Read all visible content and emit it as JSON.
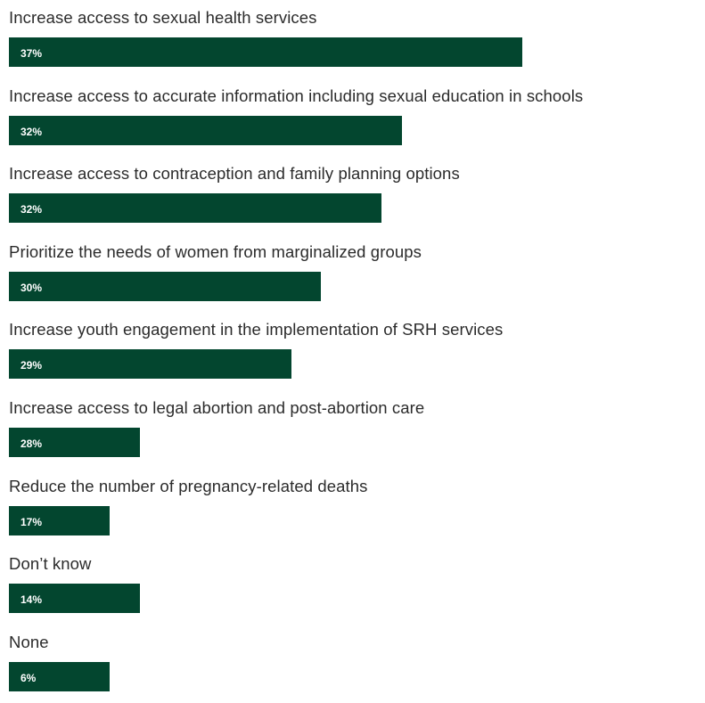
{
  "chart_data": {
    "type": "bar",
    "orientation": "horizontal",
    "categories": [
      "Increase access to sexual health services",
      "Increase access to accurate information including sexual education in schools",
      "Increase access to contraception and family planning options",
      "Prioritize the needs of women from marginalized groups",
      "Increase youth engagement in the implementation of SRH services",
      "Increase access to legal abortion and post-abortion care",
      "Reduce the number of pregnancy-related deaths",
      "Don’t know",
      "None"
    ],
    "values": [
      37,
      32,
      32,
      30,
      29,
      28,
      17,
      14,
      6
    ],
    "value_labels": [
      "37%",
      "32%",
      "32%",
      "30%",
      "29%",
      "28%",
      "17%",
      "14%",
      "6%"
    ],
    "title": "",
    "xlabel": "",
    "ylabel": "",
    "grid": false,
    "legend": "none",
    "bar_color": "#03462f"
  }
}
